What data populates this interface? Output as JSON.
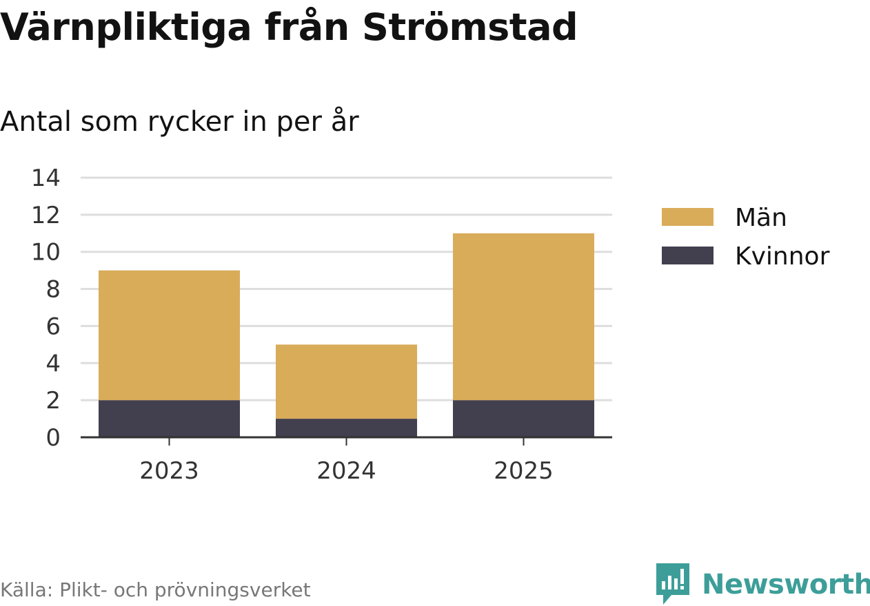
{
  "title": "Värnpliktiga från Strömstad",
  "subtitle": "Antal som rycker in per år",
  "source": "Källa: Plikt- och prövningsverket",
  "brand": "Newsworthy",
  "colors": {
    "men": "#d9ac5a",
    "women": "#423f4f",
    "grid": "#dddddd",
    "axis": "#333333",
    "brand": "#3d9e99"
  },
  "chart_data": {
    "type": "bar",
    "stacked": true,
    "title": "Värnpliktiga från Strömstad",
    "subtitle": "Antal som rycker in per år",
    "categories": [
      "2023",
      "2024",
      "2025"
    ],
    "series": [
      {
        "name": "Kvinnor",
        "values": [
          2,
          1,
          2
        ]
      },
      {
        "name": "Män",
        "values": [
          7,
          4,
          9
        ]
      }
    ],
    "legend": [
      "Män",
      "Kvinnor"
    ],
    "ylim": [
      0,
      14
    ],
    "yticks": [
      0,
      2,
      4,
      6,
      8,
      10,
      12,
      14
    ],
    "grid": true,
    "legend_position": "right"
  }
}
